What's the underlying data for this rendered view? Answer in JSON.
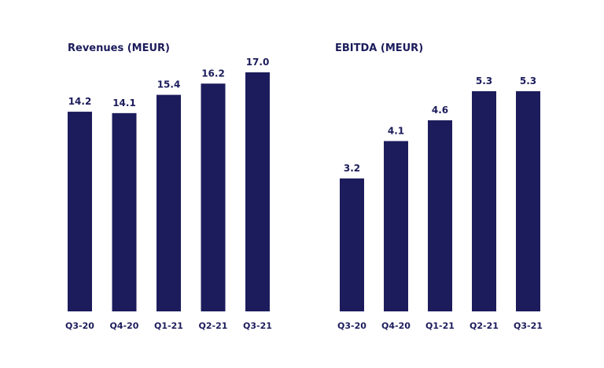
{
  "colors": {
    "bar": "#1c1c5c",
    "text": "#1c1c5c",
    "background": "#ffffff"
  },
  "chart_data": [
    {
      "type": "bar",
      "title": "Revenues (MEUR)",
      "categories": [
        "Q3-20",
        "Q4-20",
        "Q1-21",
        "Q2-21",
        "Q3-21"
      ],
      "values": [
        14.2,
        14.1,
        15.4,
        16.2,
        17.0
      ],
      "value_labels": [
        "14.2",
        "14.1",
        "15.4",
        "16.2",
        "17.0"
      ],
      "xlabel": "",
      "ylabel": "",
      "ylim": [
        0,
        17.0
      ],
      "grid": false,
      "legend": "none"
    },
    {
      "type": "bar",
      "title": "EBITDA (MEUR)",
      "categories": [
        "Q3-20",
        "Q4-20",
        "Q1-21",
        "Q2-21",
        "Q3-21"
      ],
      "values": [
        3.2,
        4.1,
        4.6,
        5.3,
        5.3
      ],
      "value_labels": [
        "3.2",
        "4.1",
        "4.6",
        "5.3",
        "5.3"
      ],
      "xlabel": "",
      "ylabel": "",
      "ylim": [
        0,
        5.3
      ],
      "grid": false,
      "legend": "none"
    }
  ]
}
